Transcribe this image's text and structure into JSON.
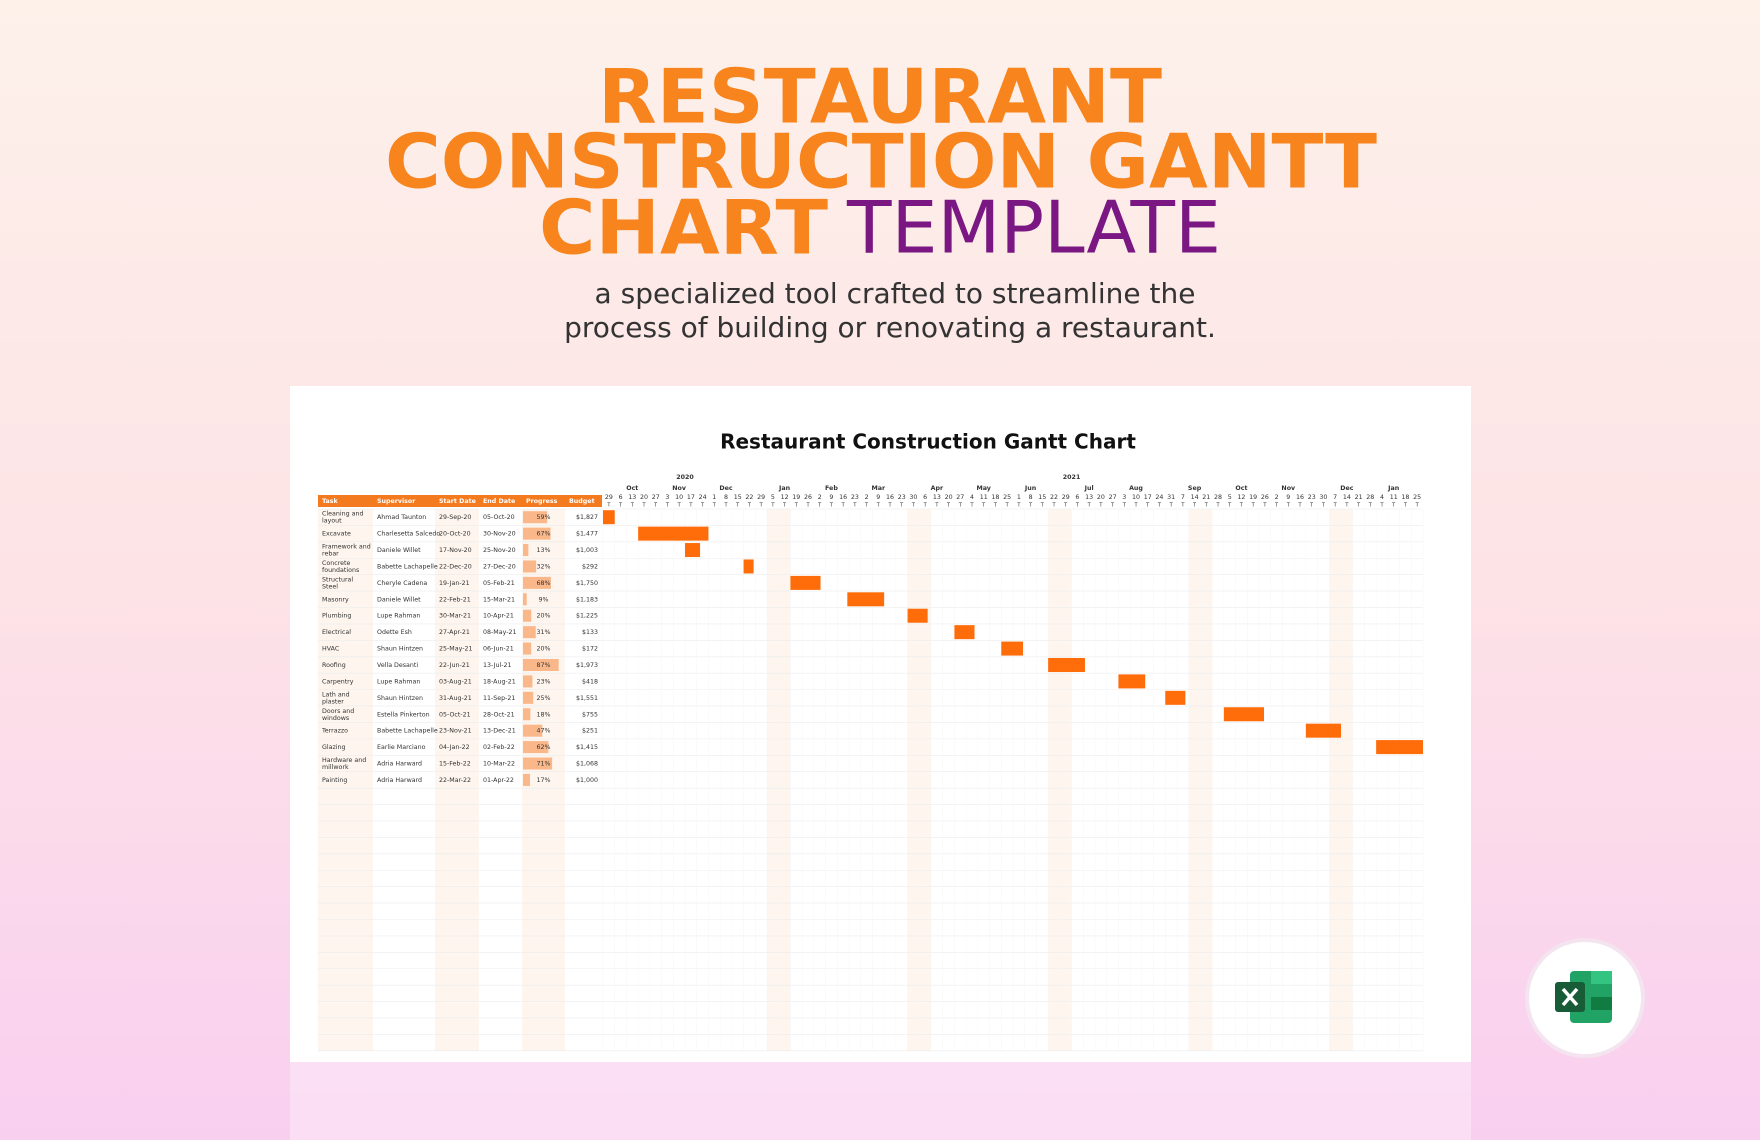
{
  "header": {
    "title_lines": [
      "RESTAURANT",
      "CONSTRUCTION GANTT",
      "CHART"
    ],
    "title_accent": "TEMPLATE",
    "subtitle_lines": [
      "a specialized tool crafted to streamline the",
      "process of building or renovating a restaurant."
    ]
  },
  "sheet": {
    "title": "Restaurant Construction Gantt Chart",
    "columns": [
      "Task",
      "Supervisor",
      "Start Date",
      "End Date",
      "Progress",
      "Budget"
    ],
    "rows": [
      {
        "task": "Cleaning and layout",
        "supervisor": "Ahmad Taunton",
        "start": "29-Sep-20",
        "end": "05-Oct-20",
        "progress": {
          "value": 59,
          "label": "59%"
        },
        "budget": "$1,827"
      },
      {
        "task": "Excavate",
        "supervisor": "Charlesetta Salcedo",
        "start": "20-Oct-20",
        "end": "30-Nov-20",
        "progress": {
          "value": 67,
          "label": "67%"
        },
        "budget": "$1,477"
      },
      {
        "task": "Framework and rebar",
        "supervisor": "Daniele Willet",
        "start": "17-Nov-20",
        "end": "25-Nov-20",
        "progress": {
          "value": 13,
          "label": "13%"
        },
        "budget": "$1,003"
      },
      {
        "task": "Concrete foundations",
        "supervisor": "Babette Lachapelle",
        "start": "22-Dec-20",
        "end": "27-Dec-20",
        "progress": {
          "value": 32,
          "label": "32%"
        },
        "budget": "$292"
      },
      {
        "task": "Structural Steel",
        "supervisor": "Cheryle Cadena",
        "start": "19-Jan-21",
        "end": "05-Feb-21",
        "progress": {
          "value": 68,
          "label": "68%"
        },
        "budget": "$1,750"
      },
      {
        "task": "Masonry",
        "supervisor": "Daniele Willet",
        "start": "22-Feb-21",
        "end": "15-Mar-21",
        "progress": {
          "value": 9,
          "label": "9%"
        },
        "budget": "$1,183"
      },
      {
        "task": "Plumbing",
        "supervisor": "Lupe Rahman",
        "start": "30-Mar-21",
        "end": "10-Apr-21",
        "progress": {
          "value": 20,
          "label": "20%"
        },
        "budget": "$1,225"
      },
      {
        "task": "Electrical",
        "supervisor": "Odette Esh",
        "start": "27-Apr-21",
        "end": "08-May-21",
        "progress": {
          "value": 31,
          "label": "31%"
        },
        "budget": "$133"
      },
      {
        "task": "HVAC",
        "supervisor": "Shaun Hintzen",
        "start": "25-May-21",
        "end": "06-Jun-21",
        "progress": {
          "value": 20,
          "label": "20%"
        },
        "budget": "$172"
      },
      {
        "task": "Roofing",
        "supervisor": "Vella Desanti",
        "start": "22-Jun-21",
        "end": "13-Jul-21",
        "progress": {
          "value": 87,
          "label": "87%"
        },
        "budget": "$1,973"
      },
      {
        "task": "Carpentry",
        "supervisor": "Lupe Rahman",
        "start": "03-Aug-21",
        "end": "18-Aug-21",
        "progress": {
          "value": 23,
          "label": "23%"
        },
        "budget": "$418"
      },
      {
        "task": "Lath and plaster",
        "supervisor": "Shaun Hintzen",
        "start": "31-Aug-21",
        "end": "11-Sep-21",
        "progress": {
          "value": 25,
          "label": "25%"
        },
        "budget": "$1,551"
      },
      {
        "task": "Doors and windows",
        "supervisor": "Estella Pinkerton",
        "start": "05-Oct-21",
        "end": "28-Oct-21",
        "progress": {
          "value": 18,
          "label": "18%"
        },
        "budget": "$755"
      },
      {
        "task": "Terrazzo",
        "supervisor": "Babette Lachapelle",
        "start": "23-Nov-21",
        "end": "13-Dec-21",
        "progress": {
          "value": 47,
          "label": "47%"
        },
        "budget": "$251"
      },
      {
        "task": "Glazing",
        "supervisor": "Earlie Marciano",
        "start": "04-Jan-22",
        "end": "02-Feb-22",
        "progress": {
          "value": 62,
          "label": "62%"
        },
        "budget": "$1,415"
      },
      {
        "task": "Hardware and millwork",
        "supervisor": "Adria Harward",
        "start": "15-Feb-22",
        "end": "10-Mar-22",
        "progress": {
          "value": 71,
          "label": "71%"
        },
        "budget": "$1,068"
      },
      {
        "task": "Painting",
        "supervisor": "Adria Harward",
        "start": "22-Mar-22",
        "end": "01-Apr-22",
        "progress": {
          "value": 17,
          "label": "17%"
        },
        "budget": "$1,000"
      }
    ],
    "timeline": {
      "years": [
        "2020",
        "2021"
      ],
      "months": [
        "Oct",
        "Nov",
        "Dec",
        "Jan",
        "Feb",
        "Mar",
        "Apr",
        "May",
        "Jun",
        "Jul",
        "Aug",
        "Sep",
        "Oct",
        "Nov",
        "Dec",
        "Jan"
      ],
      "weeks": [
        29,
        6,
        13,
        20,
        27,
        3,
        10,
        17,
        24,
        1,
        8,
        15,
        22,
        29,
        5,
        12,
        19,
        26,
        2,
        9,
        16,
        23,
        2,
        9,
        16,
        23,
        30,
        6,
        13,
        20,
        27,
        4,
        11,
        18,
        25,
        1,
        8,
        15,
        22,
        29,
        6,
        13,
        20,
        27,
        3,
        10,
        17,
        24,
        31,
        7,
        14,
        21,
        28,
        5,
        12,
        19,
        26,
        2,
        9,
        16,
        23,
        30,
        7,
        14,
        21,
        28,
        4,
        11,
        18,
        25
      ],
      "weekday": "T"
    }
  }
}
